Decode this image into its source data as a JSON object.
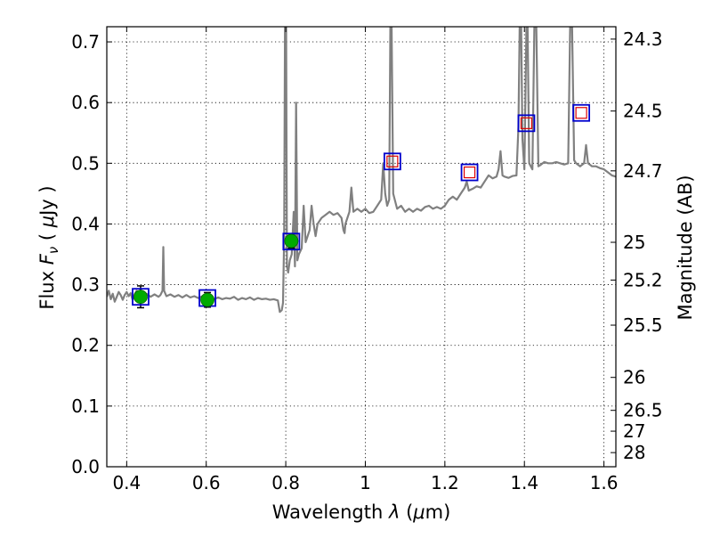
{
  "chart_data": {
    "type": "line",
    "xlabel_prefix": "Wavelength  ",
    "xlabel_symbol": "λ",
    "xlabel_unit_open": " (",
    "xlabel_unit_mu": "μ",
    "xlabel_unit_close": "m)",
    "ylabel_prefix": "Flux  ",
    "ylabel_symbol": "F",
    "ylabel_sub": "ν",
    "ylabel_unit_open": "  ( ",
    "ylabel_unit_mu": "μ",
    "ylabel_unit_close": "Jy )",
    "y2label": "Magnitude (AB)",
    "xlim": [
      0.35,
      1.63
    ],
    "ylim": [
      0.0,
      0.725
    ],
    "grid": true,
    "x_ticks": [
      {
        "value": 0.4,
        "label": "0.4"
      },
      {
        "value": 0.6,
        "label": "0.6"
      },
      {
        "value": 0.8,
        "label": "0.8"
      },
      {
        "value": 1.0,
        "label": "1"
      },
      {
        "value": 1.2,
        "label": "1.2"
      },
      {
        "value": 1.4,
        "label": "1.4"
      },
      {
        "value": 1.6,
        "label": "1.6"
      }
    ],
    "y_ticks": [
      {
        "value": 0.0,
        "label": "0.0"
      },
      {
        "value": 0.1,
        "label": "0.1"
      },
      {
        "value": 0.2,
        "label": "0.2"
      },
      {
        "value": 0.3,
        "label": "0.3"
      },
      {
        "value": 0.4,
        "label": "0.4"
      },
      {
        "value": 0.5,
        "label": "0.5"
      },
      {
        "value": 0.6,
        "label": "0.6"
      },
      {
        "value": 0.7,
        "label": "0.7"
      }
    ],
    "mag_ticks": [
      {
        "label": "24.3",
        "flux": 0.7046
      },
      {
        "label": "24.5",
        "flux": 0.5861
      },
      {
        "label": "24.7",
        "flux": 0.4875
      },
      {
        "label": "25",
        "flux": 0.3698
      },
      {
        "label": "25.2",
        "flux": 0.3076
      },
      {
        "label": "25.5",
        "flux": 0.2333
      },
      {
        "label": "26",
        "flux": 0.1472
      },
      {
        "label": "26.5",
        "flux": 0.0929
      },
      {
        "label": "27",
        "flux": 0.0586
      },
      {
        "label": "28",
        "flux": 0.0233
      }
    ],
    "spectrum": {
      "name": "model spectrum",
      "color": "#808080",
      "points": [
        [
          0.35,
          0.28
        ],
        [
          0.355,
          0.29
        ],
        [
          0.36,
          0.276
        ],
        [
          0.365,
          0.285
        ],
        [
          0.37,
          0.272
        ],
        [
          0.375,
          0.28
        ],
        [
          0.38,
          0.288
        ],
        [
          0.385,
          0.283
        ],
        [
          0.39,
          0.275
        ],
        [
          0.395,
          0.283
        ],
        [
          0.4,
          0.288
        ],
        [
          0.405,
          0.281
        ],
        [
          0.41,
          0.286
        ],
        [
          0.415,
          0.275
        ],
        [
          0.42,
          0.284
        ],
        [
          0.425,
          0.29
        ],
        [
          0.43,
          0.285
        ],
        [
          0.44,
          0.283
        ],
        [
          0.45,
          0.285
        ],
        [
          0.46,
          0.28
        ],
        [
          0.47,
          0.284
        ],
        [
          0.48,
          0.28
        ],
        [
          0.485,
          0.283
        ],
        [
          0.49,
          0.29
        ],
        [
          0.492,
          0.362
        ],
        [
          0.494,
          0.29
        ],
        [
          0.5,
          0.281
        ],
        [
          0.51,
          0.284
        ],
        [
          0.52,
          0.28
        ],
        [
          0.53,
          0.283
        ],
        [
          0.54,
          0.279
        ],
        [
          0.55,
          0.283
        ],
        [
          0.56,
          0.279
        ],
        [
          0.57,
          0.281
        ],
        [
          0.58,
          0.278
        ],
        [
          0.59,
          0.281
        ],
        [
          0.6,
          0.278
        ],
        [
          0.61,
          0.28
        ],
        [
          0.62,
          0.276
        ],
        [
          0.63,
          0.279
        ],
        [
          0.64,
          0.276
        ],
        [
          0.65,
          0.278
        ],
        [
          0.66,
          0.277
        ],
        [
          0.67,
          0.28
        ],
        [
          0.68,
          0.275
        ],
        [
          0.69,
          0.278
        ],
        [
          0.7,
          0.276
        ],
        [
          0.71,
          0.279
        ],
        [
          0.72,
          0.275
        ],
        [
          0.73,
          0.278
        ],
        [
          0.74,
          0.276
        ],
        [
          0.75,
          0.277
        ],
        [
          0.76,
          0.275
        ],
        [
          0.77,
          0.276
        ],
        [
          0.78,
          0.274
        ],
        [
          0.785,
          0.255
        ],
        [
          0.79,
          0.258
        ],
        [
          0.793,
          0.27
        ],
        [
          0.796,
          0.38
        ],
        [
          0.798,
          0.725
        ],
        [
          0.801,
          0.725
        ],
        [
          0.803,
          0.33
        ],
        [
          0.806,
          0.32
        ],
        [
          0.81,
          0.34
        ],
        [
          0.815,
          0.35
        ],
        [
          0.82,
          0.42
        ],
        [
          0.823,
          0.33
        ],
        [
          0.826,
          0.6
        ],
        [
          0.829,
          0.34
        ],
        [
          0.833,
          0.35
        ],
        [
          0.84,
          0.36
        ],
        [
          0.845,
          0.43
        ],
        [
          0.85,
          0.37
        ],
        [
          0.86,
          0.39
        ],
        [
          0.865,
          0.43
        ],
        [
          0.87,
          0.4
        ],
        [
          0.875,
          0.38
        ],
        [
          0.88,
          0.4
        ],
        [
          0.89,
          0.41
        ],
        [
          0.9,
          0.415
        ],
        [
          0.91,
          0.42
        ],
        [
          0.92,
          0.415
        ],
        [
          0.93,
          0.418
        ],
        [
          0.94,
          0.41
        ],
        [
          0.945,
          0.39
        ],
        [
          0.948,
          0.385
        ],
        [
          0.95,
          0.4
        ],
        [
          0.96,
          0.42
        ],
        [
          0.965,
          0.46
        ],
        [
          0.97,
          0.42
        ],
        [
          0.98,
          0.425
        ],
        [
          0.99,
          0.42
        ],
        [
          1.0,
          0.425
        ],
        [
          1.01,
          0.418
        ],
        [
          1.02,
          0.42
        ],
        [
          1.03,
          0.43
        ],
        [
          1.04,
          0.44
        ],
        [
          1.045,
          0.5
        ],
        [
          1.05,
          0.45
        ],
        [
          1.055,
          0.43
        ],
        [
          1.06,
          0.44
        ],
        [
          1.063,
          0.725
        ],
        [
          1.066,
          0.725
        ],
        [
          1.07,
          0.45
        ],
        [
          1.08,
          0.425
        ],
        [
          1.09,
          0.43
        ],
        [
          1.1,
          0.42
        ],
        [
          1.11,
          0.425
        ],
        [
          1.12,
          0.42
        ],
        [
          1.13,
          0.425
        ],
        [
          1.14,
          0.422
        ],
        [
          1.15,
          0.428
        ],
        [
          1.16,
          0.43
        ],
        [
          1.17,
          0.425
        ],
        [
          1.18,
          0.428
        ],
        [
          1.19,
          0.425
        ],
        [
          1.2,
          0.43
        ],
        [
          1.21,
          0.44
        ],
        [
          1.22,
          0.445
        ],
        [
          1.23,
          0.44
        ],
        [
          1.24,
          0.45
        ],
        [
          1.25,
          0.46
        ],
        [
          1.255,
          0.47
        ],
        [
          1.26,
          0.455
        ],
        [
          1.27,
          0.458
        ],
        [
          1.28,
          0.462
        ],
        [
          1.29,
          0.46
        ],
        [
          1.3,
          0.47
        ],
        [
          1.31,
          0.48
        ],
        [
          1.32,
          0.475
        ],
        [
          1.33,
          0.478
        ],
        [
          1.335,
          0.49
        ],
        [
          1.34,
          0.52
        ],
        [
          1.345,
          0.48
        ],
        [
          1.35,
          0.478
        ],
        [
          1.36,
          0.476
        ],
        [
          1.37,
          0.479
        ],
        [
          1.38,
          0.48
        ],
        [
          1.385,
          0.56
        ],
        [
          1.388,
          0.725
        ],
        [
          1.392,
          0.725
        ],
        [
          1.395,
          0.54
        ],
        [
          1.4,
          0.49
        ],
        [
          1.405,
          0.725
        ],
        [
          1.408,
          0.725
        ],
        [
          1.412,
          0.5
        ],
        [
          1.42,
          0.49
        ],
        [
          1.425,
          0.725
        ],
        [
          1.43,
          0.725
        ],
        [
          1.435,
          0.495
        ],
        [
          1.44,
          0.497
        ],
        [
          1.45,
          0.502
        ],
        [
          1.46,
          0.5
        ],
        [
          1.47,
          0.5
        ],
        [
          1.48,
          0.502
        ],
        [
          1.49,
          0.5
        ],
        [
          1.5,
          0.498
        ],
        [
          1.51,
          0.5
        ],
        [
          1.515,
          0.725
        ],
        [
          1.52,
          0.725
        ],
        [
          1.525,
          0.505
        ],
        [
          1.53,
          0.5
        ],
        [
          1.54,
          0.495
        ],
        [
          1.55,
          0.5
        ],
        [
          1.555,
          0.53
        ],
        [
          1.56,
          0.5
        ],
        [
          1.57,
          0.495
        ],
        [
          1.58,
          0.495
        ],
        [
          1.59,
          0.492
        ],
        [
          1.6,
          0.49
        ],
        [
          1.61,
          0.485
        ],
        [
          1.62,
          0.48
        ],
        [
          1.63,
          0.478
        ]
      ]
    },
    "photometry": [
      {
        "x": 0.435,
        "y": 0.28,
        "err": 0.018,
        "symbol": "circle"
      },
      {
        "x": 0.603,
        "y": 0.275,
        "err": 0.012,
        "symbol": "circle"
      },
      {
        "x": 0.814,
        "y": 0.372,
        "err": 0.012,
        "symbol": "circle"
      }
    ],
    "model_squares": [
      {
        "x": 0.435,
        "y": 0.28,
        "style": "blue"
      },
      {
        "x": 0.603,
        "y": 0.278,
        "style": "blue"
      },
      {
        "x": 0.814,
        "y": 0.371,
        "style": "blue"
      },
      {
        "x": 1.068,
        "y": 0.503,
        "style": "blue-red"
      },
      {
        "x": 1.262,
        "y": 0.485,
        "style": "blue-red"
      },
      {
        "x": 1.405,
        "y": 0.566,
        "style": "blue-red"
      },
      {
        "x": 1.543,
        "y": 0.583,
        "style": "blue-red"
      }
    ],
    "colors": {
      "spectrum": "#808080",
      "point_fill": "#00aa00",
      "square_outer": "#0000cc",
      "square_inner": "#dd0000",
      "error_bar": "#000000"
    }
  }
}
